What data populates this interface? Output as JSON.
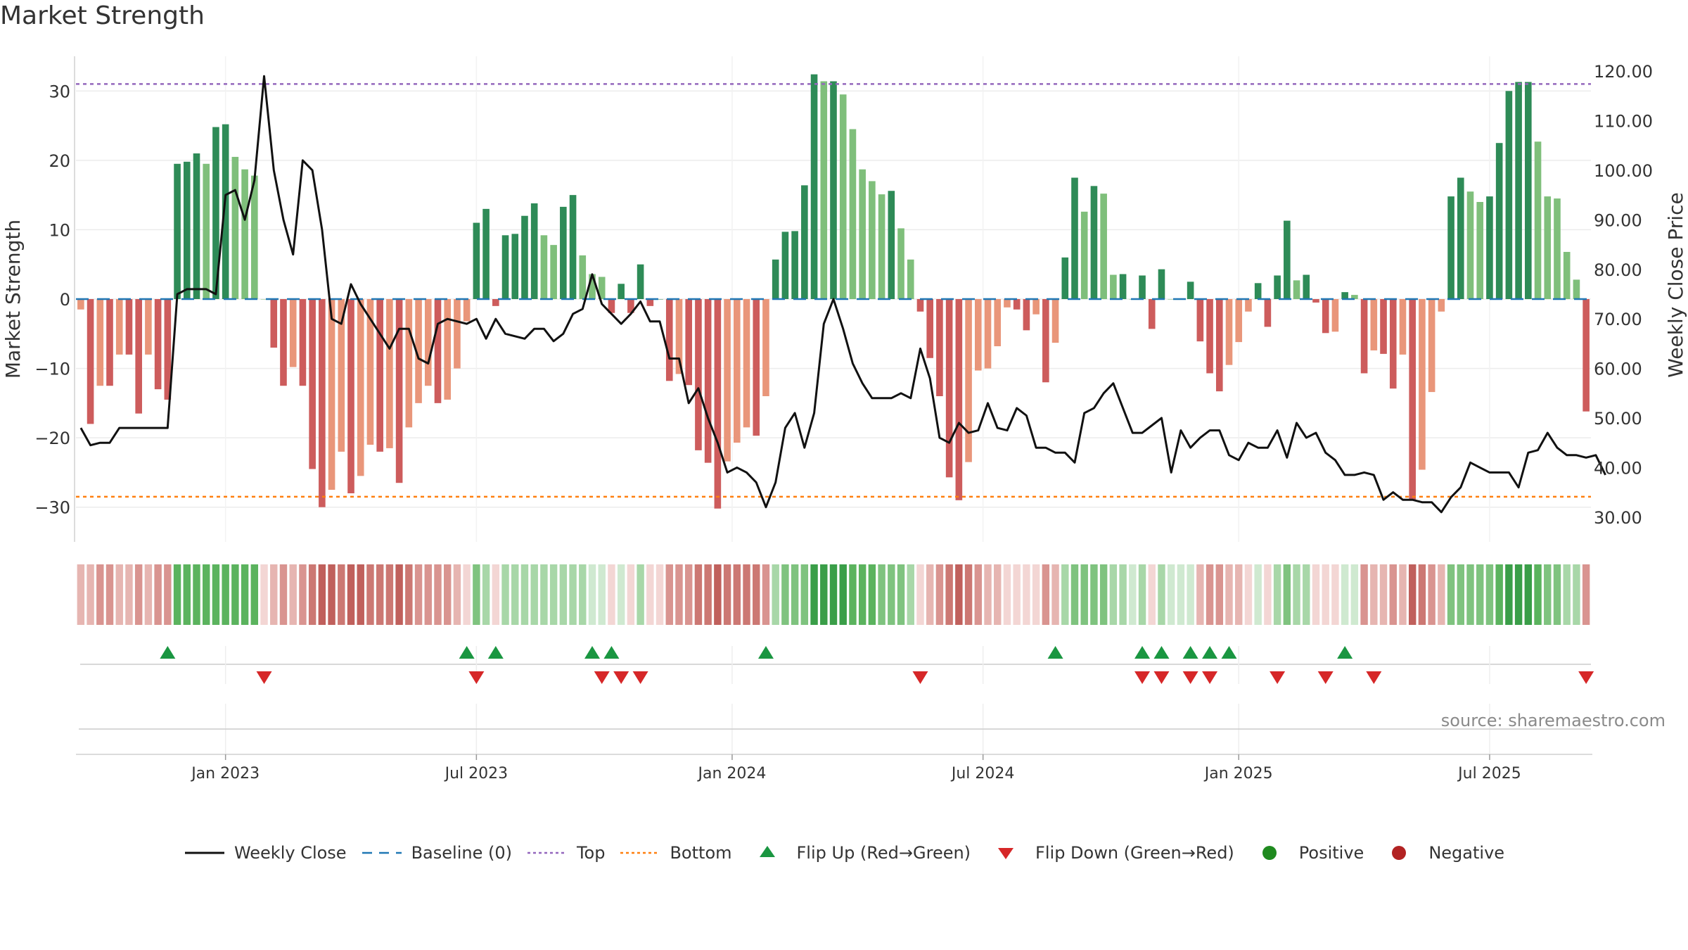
{
  "title": "Market Strength",
  "source": "source: sharemaestro.com",
  "colors": {
    "strong_green": "#2e8b57",
    "light_green": "#7fbf7b",
    "strong_red": "#cd5c5c",
    "light_red": "#e9967a",
    "line": "#111111",
    "baseline": "#1f77b4",
    "top": "#9467bd",
    "bottom": "#ff7f0e",
    "flip_up": "#1a9641",
    "flip_down": "#d62728",
    "positive": "#1f8a1f",
    "negative": "#b22222"
  },
  "legend": [
    {
      "key": "close",
      "label": "Weekly Close"
    },
    {
      "key": "baseline",
      "label": "Baseline (0)"
    },
    {
      "key": "top",
      "label": "Top"
    },
    {
      "key": "bottom",
      "label": "Bottom"
    },
    {
      "key": "flip_up",
      "label": "Flip Up (Red→Green)"
    },
    {
      "key": "flip_down",
      "label": "Flip Down (Green→Red)"
    },
    {
      "key": "positive",
      "label": "Positive"
    },
    {
      "key": "negative",
      "label": "Negative"
    }
  ],
  "chart_data": {
    "type": "bar",
    "title": "Market Strength",
    "ylabel": "Market Strength",
    "y2label": "Weekly Close Price",
    "ylim": [
      -35,
      35
    ],
    "y2lim": [
      25,
      123
    ],
    "yticks": [
      30,
      20,
      10,
      0,
      -10,
      -20,
      -30
    ],
    "y2ticks": [
      "120.00",
      "110.00",
      "100.00",
      "90.00",
      "80.00",
      "70.00",
      "60.00",
      "50.00",
      "40.00",
      "30.00"
    ],
    "top_level": 31,
    "bottom_level": -28.5,
    "x_ticks": [
      {
        "label": "Jan 2023",
        "week": 15
      },
      {
        "label": "Jul 2023",
        "week": 41
      },
      {
        "label": "Jan 2024",
        "week": 67.5
      },
      {
        "label": "Jul 2024",
        "week": 93.5
      },
      {
        "label": "Jan 2025",
        "week": 120
      },
      {
        "label": "Jul 2025",
        "week": 146
      }
    ],
    "strength": [
      -1.5,
      -18,
      -12.5,
      -12.5,
      -8,
      -8,
      -16.5,
      -8,
      -13,
      -14.5,
      19.5,
      19.8,
      21,
      19.5,
      24.8,
      25.2,
      20.5,
      18.7,
      17.8,
      0,
      -7,
      -12.5,
      -9.8,
      -12.5,
      -24.5,
      -30,
      -27.5,
      -22,
      -28,
      -25.5,
      -21,
      -22,
      -21.5,
      -26.5,
      -18.5,
      -15,
      -12.5,
      -15,
      -14.5,
      -10,
      -3.2,
      11,
      13,
      -1,
      9.2,
      9.4,
      12,
      13.8,
      9.2,
      7.8,
      13.3,
      15,
      6.3,
      3.6,
      3.2,
      -2,
      2.2,
      -2,
      5,
      -1,
      0,
      -11.8,
      -10.8,
      -12.4,
      -21.8,
      -23.6,
      -30.2,
      -23.4,
      -20.7,
      -18.5,
      -19.7,
      -14,
      5.7,
      9.7,
      9.8,
      16.4,
      32.4,
      31.4,
      31.4,
      29.5,
      24.5,
      18.7,
      17,
      15.1,
      15.6,
      10.2,
      5.7,
      -1.8,
      -8.5,
      -14,
      -25.7,
      -29,
      -23.5,
      -10.3,
      -10,
      -6.8,
      -1.2,
      -1.5,
      -4.5,
      -2.2,
      -12,
      -6.3,
      6,
      17.5,
      12.6,
      16.3,
      15.2,
      3.5,
      3.6,
      0,
      3.4,
      -4.3,
      4.3,
      0,
      0,
      2.5,
      -6.1,
      -10.7,
      -13.3,
      -9.5,
      -6.2,
      -1.8,
      2.3,
      -4,
      3.4,
      11.3,
      2.7,
      3.5,
      -0.5,
      -4.9,
      -4.7,
      1,
      0.6,
      -10.7,
      -7.4,
      -7.9,
      -12.9,
      -8,
      -28.9,
      -24.6,
      -13.4,
      -1.8,
      14.8,
      17.5,
      15.5,
      14,
      14.8,
      22.5,
      30,
      31.3,
      31.3,
      22.7,
      14.8,
      14.5,
      6.8,
      2.8,
      -16.2
    ],
    "weekly_close": [
      48,
      44.5,
      45,
      45,
      48,
      48,
      48,
      48,
      48,
      48,
      75,
      76,
      76,
      76,
      75,
      95,
      96,
      90,
      98,
      119,
      100,
      90,
      83,
      102,
      100,
      88,
      70,
      69,
      77,
      73,
      70,
      67,
      64,
      68,
      68,
      62,
      61,
      69,
      70,
      69.5,
      69,
      70,
      66,
      70,
      67,
      66.5,
      66,
      68,
      68,
      65.5,
      67,
      71,
      72,
      79,
      73,
      71,
      69,
      71,
      73.5,
      69.5,
      69.5,
      62,
      62,
      53,
      56,
      50,
      45,
      39,
      40,
      39,
      37,
      32,
      37,
      48,
      51,
      44,
      51,
      69,
      74,
      68,
      61,
      57,
      54,
      54,
      54,
      55,
      54,
      64,
      58,
      46,
      45,
      49,
      47,
      47.5,
      53,
      48,
      47.5,
      52,
      50.5,
      44,
      44,
      43,
      43,
      41,
      51,
      52,
      55,
      57,
      52,
      47,
      47,
      48.5,
      50,
      39,
      47.5,
      44,
      46,
      47.5,
      47.5,
      42.5,
      41.5,
      45,
      44,
      44,
      47.5,
      42,
      49,
      46,
      47,
      43,
      41.5,
      38.5,
      38.5,
      39,
      38.5,
      33.5,
      35,
      33.5,
      33.5,
      33,
      33,
      31,
      34,
      36,
      41,
      40,
      39,
      39,
      39,
      36,
      43,
      43.5,
      47,
      44,
      42.5,
      42.5,
      42,
      42.5,
      38.5
    ],
    "heat_strip": [
      -2,
      -2,
      -3,
      -3,
      -2,
      -2,
      -3,
      -2,
      -3,
      -3,
      4,
      4,
      4,
      4,
      4,
      4,
      4,
      4,
      4,
      -1,
      -2,
      -3,
      -2,
      -3,
      -4,
      -5,
      -5,
      -4,
      -5,
      -5,
      -4,
      -4,
      -4,
      -5,
      -4,
      -3,
      -3,
      -3,
      -3,
      -2,
      -1,
      3,
      2,
      -1,
      2,
      2,
      2,
      2,
      2,
      2,
      2,
      2,
      2,
      1,
      1,
      -1,
      1,
      -1,
      2,
      -1,
      -1,
      -3,
      -3,
      -3,
      -4,
      -4,
      -5,
      -4,
      -4,
      -4,
      -4,
      -3,
      2,
      3,
      3,
      3,
      5,
      5,
      5,
      5,
      4,
      4,
      4,
      3,
      3,
      3,
      2,
      -1,
      -2,
      -3,
      -4,
      -5,
      -4,
      -3,
      -2,
      -2,
      -1,
      -1,
      -1,
      -1,
      -3,
      -2,
      2,
      3,
      3,
      3,
      3,
      2,
      2,
      1,
      2,
      -1,
      2,
      1,
      1,
      1,
      -2,
      -3,
      -3,
      -2,
      -2,
      -1,
      1,
      -1,
      2,
      3,
      2,
      2,
      -1,
      -1,
      -1,
      1,
      1,
      -3,
      -2,
      -2,
      -3,
      -2,
      -5,
      -4,
      -3,
      -2,
      3,
      3,
      3,
      3,
      3,
      4,
      5,
      5,
      5,
      4,
      3,
      3,
      2,
      2,
      -3
    ],
    "flip_up_weeks": [
      9,
      40,
      43,
      53,
      55,
      71,
      101,
      110,
      112,
      115,
      117,
      119,
      131
    ],
    "flip_down_weeks": [
      19,
      41,
      54,
      56,
      58,
      87,
      110,
      112,
      115,
      117,
      124,
      129,
      134,
      156
    ]
  }
}
